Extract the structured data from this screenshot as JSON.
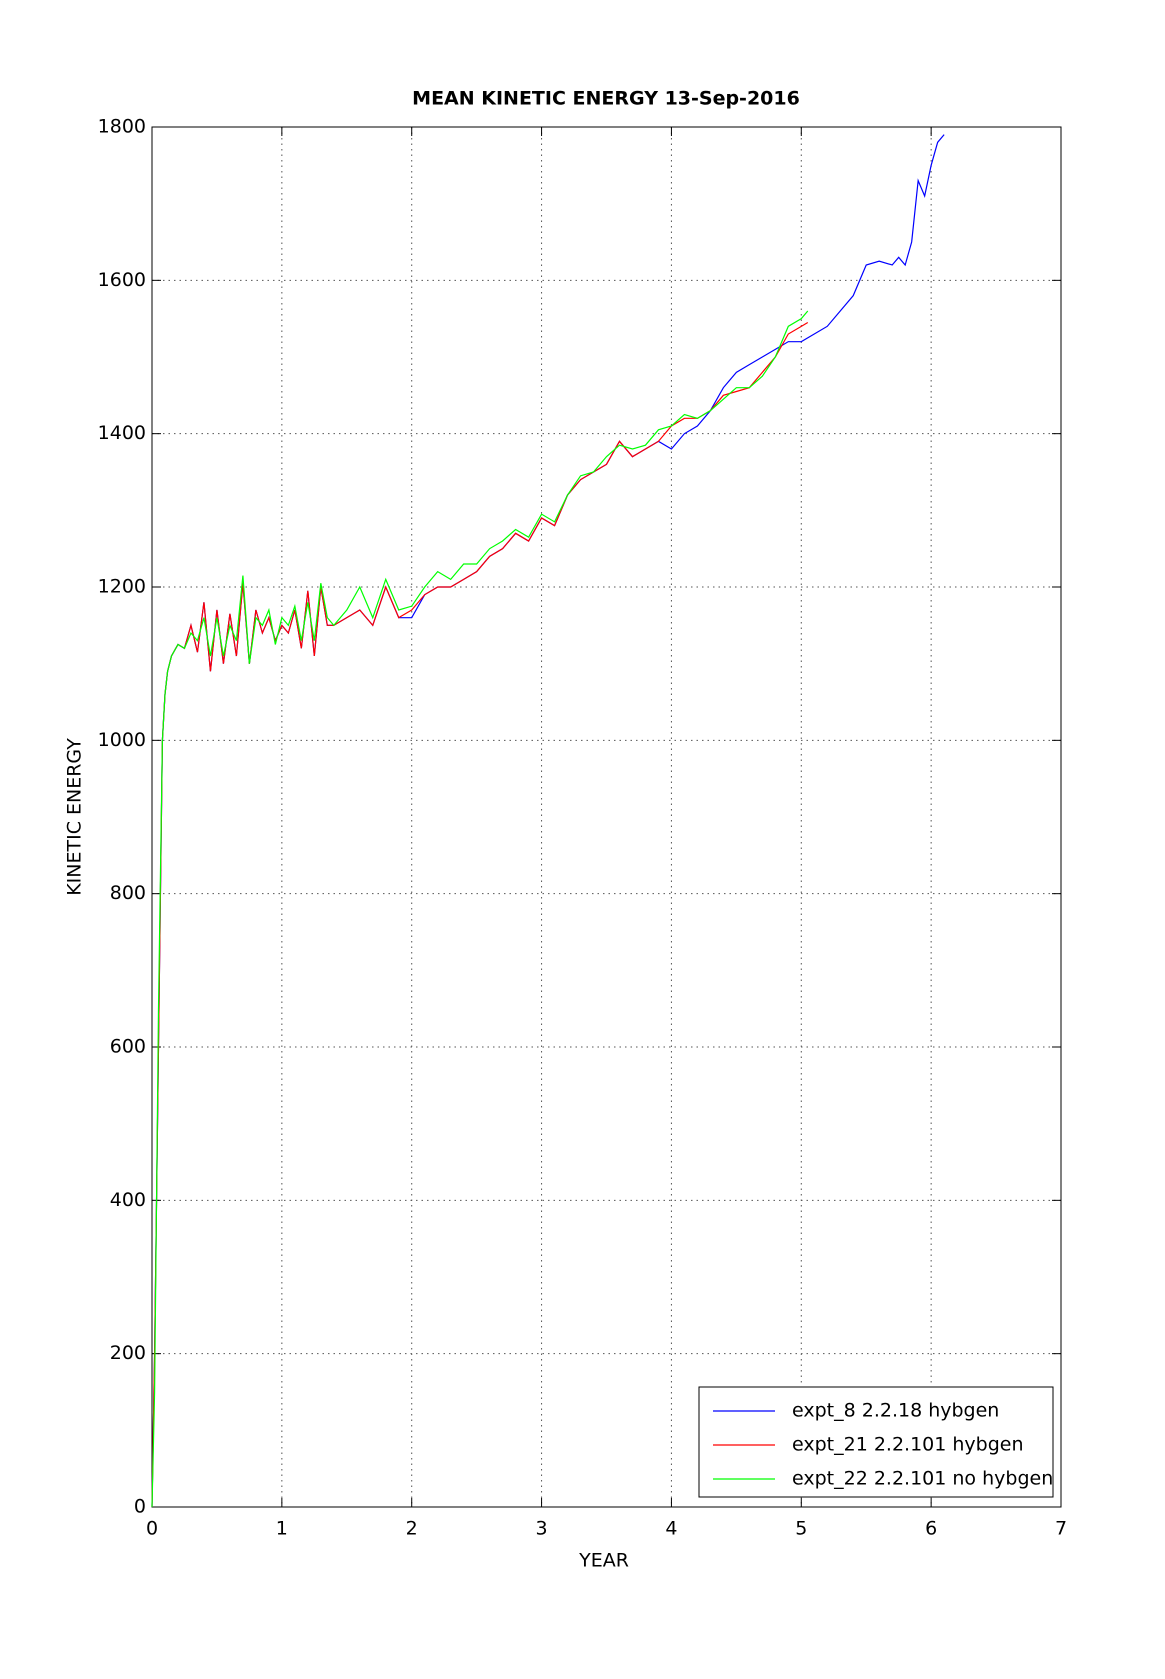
{
  "chart_data": {
    "type": "line",
    "title": "MEAN KINETIC ENERGY 13-Sep-2016",
    "x_label": "YEAR",
    "y_label": "KINETIC ENERGY",
    "xlim": [
      0,
      7
    ],
    "xticks": [
      0,
      1,
      2,
      3,
      4,
      5,
      6,
      7
    ],
    "ylim": [
      0,
      1800
    ],
    "yticks": [
      0,
      200,
      400,
      600,
      800,
      1000,
      1200,
      1400,
      1600,
      1800
    ],
    "grid": true,
    "legend": "lower right",
    "series": [
      {
        "name": "expt_8 2.2.18 hybgen",
        "color": "#0000ff",
        "x": [
          0,
          0.02,
          0.05,
          0.08,
          0.1,
          0.12,
          0.15,
          0.2,
          0.25,
          0.3,
          0.35,
          0.4,
          0.45,
          0.5,
          0.55,
          0.6,
          0.65,
          0.7,
          0.75,
          0.8,
          0.85,
          0.9,
          0.95,
          1.0,
          1.05,
          1.1,
          1.15,
          1.2,
          1.25,
          1.3,
          1.35,
          1.4,
          1.5,
          1.6,
          1.7,
          1.8,
          1.9,
          2.0,
          2.1,
          2.2,
          2.3,
          2.4,
          2.5,
          2.6,
          2.7,
          2.8,
          2.9,
          3.0,
          3.1,
          3.2,
          3.3,
          3.4,
          3.5,
          3.6,
          3.7,
          3.8,
          3.9,
          4.0,
          4.1,
          4.2,
          4.3,
          4.4,
          4.5,
          4.6,
          4.7,
          4.8,
          4.9,
          5.0,
          5.1,
          5.2,
          5.3,
          5.4,
          5.5,
          5.6,
          5.7,
          5.75,
          5.8,
          5.85,
          5.9,
          5.95,
          6.0,
          6.05,
          6.1
        ],
        "values": [
          0,
          200,
          600,
          1000,
          1060,
          1090,
          1110,
          1125,
          1120,
          1150,
          1115,
          1180,
          1090,
          1170,
          1100,
          1165,
          1110,
          1205,
          1100,
          1170,
          1140,
          1160,
          1130,
          1150,
          1140,
          1170,
          1120,
          1195,
          1110,
          1200,
          1150,
          1150,
          1160,
          1170,
          1150,
          1200,
          1160,
          1160,
          1190,
          1200,
          1200,
          1210,
          1220,
          1240,
          1250,
          1270,
          1260,
          1290,
          1280,
          1320,
          1340,
          1350,
          1360,
          1390,
          1370,
          1380,
          1390,
          1380,
          1400,
          1410,
          1430,
          1460,
          1480,
          1490,
          1500,
          1510,
          1520,
          1520,
          1530,
          1540,
          1560,
          1580,
          1620,
          1625,
          1620,
          1630,
          1620,
          1650,
          1730,
          1710,
          1750,
          1780,
          1790
        ]
      },
      {
        "name": "expt_21 2.2.101 hybgen",
        "color": "#ff0000",
        "x": [
          0,
          0.02,
          0.05,
          0.08,
          0.1,
          0.12,
          0.15,
          0.2,
          0.25,
          0.3,
          0.35,
          0.4,
          0.45,
          0.5,
          0.55,
          0.6,
          0.65,
          0.7,
          0.75,
          0.8,
          0.85,
          0.9,
          0.95,
          1.0,
          1.05,
          1.1,
          1.15,
          1.2,
          1.25,
          1.3,
          1.35,
          1.4,
          1.5,
          1.6,
          1.7,
          1.8,
          1.9,
          2.0,
          2.1,
          2.2,
          2.3,
          2.4,
          2.5,
          2.6,
          2.7,
          2.8,
          2.9,
          3.0,
          3.1,
          3.2,
          3.3,
          3.4,
          3.5,
          3.6,
          3.7,
          3.8,
          3.9,
          4.0,
          4.1,
          4.2,
          4.3,
          4.4,
          4.5,
          4.6,
          4.7,
          4.8,
          4.9,
          5.0,
          5.05
        ],
        "values": [
          0,
          200,
          600,
          1000,
          1060,
          1090,
          1110,
          1125,
          1120,
          1150,
          1115,
          1180,
          1090,
          1170,
          1100,
          1165,
          1110,
          1205,
          1100,
          1170,
          1140,
          1160,
          1130,
          1150,
          1140,
          1170,
          1120,
          1195,
          1110,
          1200,
          1150,
          1150,
          1160,
          1170,
          1150,
          1200,
          1160,
          1170,
          1190,
          1200,
          1200,
          1210,
          1220,
          1240,
          1250,
          1270,
          1260,
          1290,
          1280,
          1320,
          1340,
          1350,
          1360,
          1390,
          1370,
          1380,
          1390,
          1410,
          1420,
          1420,
          1430,
          1450,
          1455,
          1460,
          1480,
          1500,
          1530,
          1540,
          1545
        ]
      },
      {
        "name": "expt_22 2.2.101 no hybgen",
        "color": "#00ff00",
        "x": [
          0,
          0.02,
          0.05,
          0.08,
          0.1,
          0.12,
          0.15,
          0.2,
          0.25,
          0.3,
          0.35,
          0.4,
          0.45,
          0.5,
          0.55,
          0.6,
          0.65,
          0.7,
          0.75,
          0.8,
          0.85,
          0.9,
          0.95,
          1.0,
          1.05,
          1.1,
          1.15,
          1.2,
          1.25,
          1.3,
          1.35,
          1.4,
          1.5,
          1.6,
          1.7,
          1.8,
          1.9,
          2.0,
          2.1,
          2.2,
          2.3,
          2.4,
          2.5,
          2.6,
          2.7,
          2.8,
          2.9,
          3.0,
          3.1,
          3.2,
          3.3,
          3.4,
          3.5,
          3.6,
          3.7,
          3.8,
          3.9,
          4.0,
          4.1,
          4.2,
          4.3,
          4.4,
          4.5,
          4.6,
          4.7,
          4.8,
          4.9,
          5.0,
          5.05
        ],
        "values": [
          0,
          150,
          650,
          1000,
          1060,
          1090,
          1110,
          1125,
          1120,
          1140,
          1130,
          1160,
          1110,
          1160,
          1110,
          1150,
          1130,
          1215,
          1100,
          1160,
          1150,
          1170,
          1125,
          1160,
          1150,
          1175,
          1130,
          1180,
          1130,
          1205,
          1160,
          1150,
          1170,
          1200,
          1160,
          1210,
          1170,
          1175,
          1200,
          1220,
          1210,
          1230,
          1230,
          1250,
          1260,
          1275,
          1265,
          1295,
          1285,
          1320,
          1345,
          1350,
          1370,
          1385,
          1380,
          1385,
          1405,
          1410,
          1425,
          1420,
          1430,
          1445,
          1460,
          1460,
          1475,
          1500,
          1540,
          1550,
          1560
        ]
      }
    ]
  }
}
